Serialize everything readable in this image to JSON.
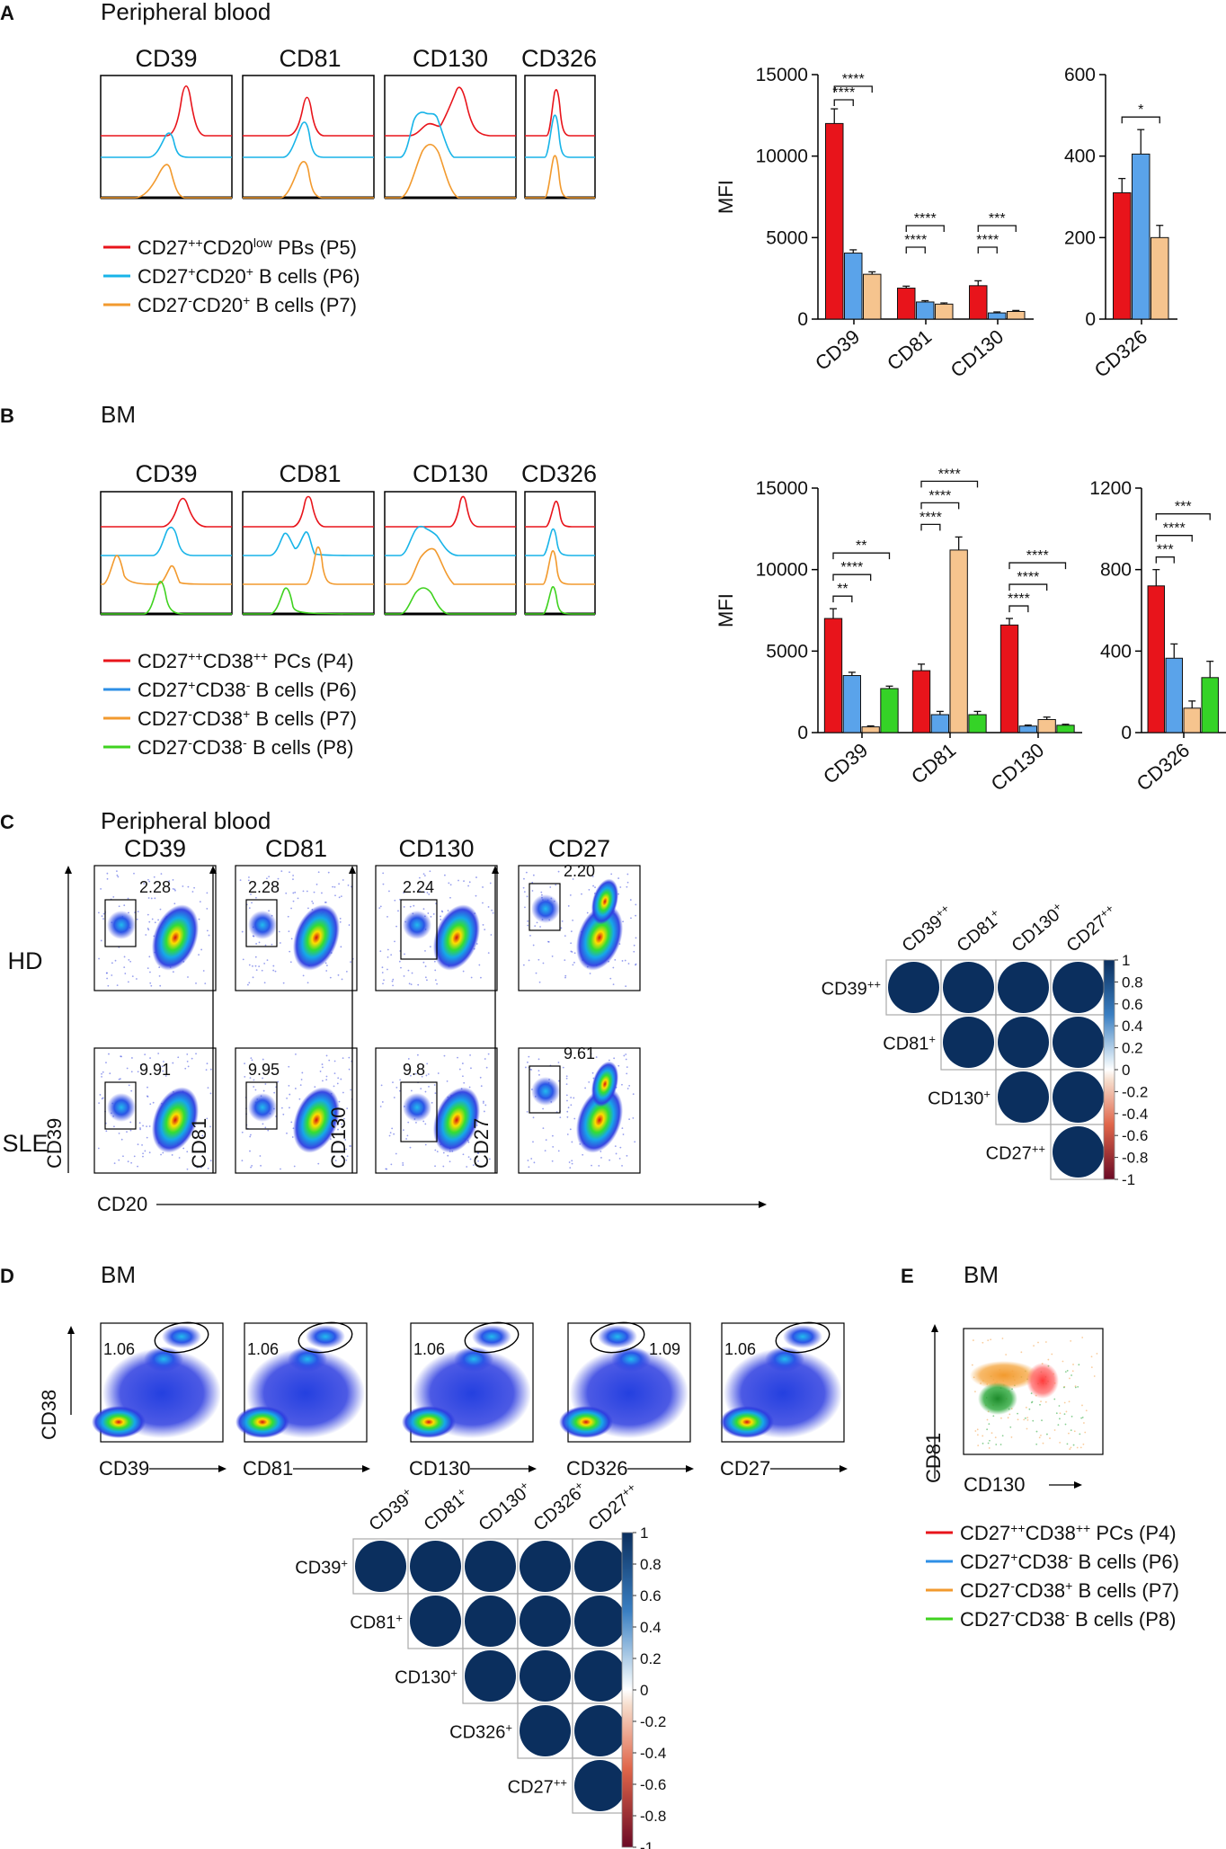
{
  "colors": {
    "red": "#e8141b",
    "blue": "#5aa3ea",
    "orange": "#f6c48e",
    "green": "#35d327",
    "blueLine": "#18b4e8",
    "blueLineB": "#2e8fe6",
    "orangeLine": "#f29a2e",
    "greenLine": "#3fd21f",
    "navy": "#0b2f5e",
    "gray": "#aaaaaa"
  },
  "panels": {
    "A": {
      "letter": "A",
      "title": "Peripheral blood"
    },
    "B": {
      "letter": "B",
      "title": "BM"
    },
    "C": {
      "letter": "C",
      "title": "Peripheral blood"
    },
    "D": {
      "letter": "D",
      "title": "BM"
    },
    "E": {
      "letter": "E",
      "title": "BM"
    }
  },
  "histA": {
    "markers": [
      "CD39",
      "CD81",
      "CD130",
      "CD326"
    ]
  },
  "histB": {
    "markers": [
      "CD39",
      "CD81",
      "CD130",
      "CD326"
    ]
  },
  "legendA": [
    {
      "html": "CD27<sup>++</sup>CD20<sup>low</sup> PBs (P5)",
      "color": "#e8141b"
    },
    {
      "html": "CD27<sup>+</sup>CD20<sup>+</sup> B cells (P6)",
      "color": "#18b4e8"
    },
    {
      "html": "CD27<sup>-</sup>CD20<sup>+</sup> B cells (P7)",
      "color": "#f29a2e"
    }
  ],
  "legendB": [
    {
      "html": "CD27<sup>++</sup>CD38<sup>++</sup> PCs (P4)",
      "color": "#e8141b"
    },
    {
      "html": "CD27<sup>+</sup>CD38<sup>-</sup> B cells (P6)",
      "color": "#2e8fe6"
    },
    {
      "html": "CD27<sup>-</sup>CD38<sup>+</sup> B cells (P7)",
      "color": "#f29a2e"
    },
    {
      "html": "CD27<sup>-</sup>CD38<sup>-</sup> B cells (P8)",
      "color": "#3fd21f"
    }
  ],
  "legendE": [
    {
      "html": "CD27<sup>++</sup>CD38<sup>++</sup> PCs (P4)",
      "color": "#e8141b"
    },
    {
      "html": "CD27<sup>+</sup>CD38<sup>-</sup> B cells (P6)",
      "color": "#2e8fe6"
    },
    {
      "html": "CD27<sup>-</sup>CD38<sup>+</sup> B cells (P7)",
      "color": "#f29a2e"
    },
    {
      "html": "CD27<sup>-</sup>CD38<sup>-</sup> B cells (P8)",
      "color": "#3fd21f"
    }
  ],
  "chart_data": [
    {
      "id": "A1",
      "type": "bar",
      "ylabel": "MFI",
      "ylim": [
        0,
        15000
      ],
      "yticks": [
        0,
        5000,
        10000,
        15000
      ],
      "categories": [
        "CD39",
        "CD81",
        "CD130"
      ],
      "series": [
        {
          "name": "P5",
          "values": [
            12000,
            1900,
            2050
          ],
          "errors": [
            900,
            120,
            300
          ]
        },
        {
          "name": "P6",
          "values": [
            4050,
            1050,
            380
          ],
          "errors": [
            200,
            80,
            60
          ]
        },
        {
          "name": "P7",
          "values": [
            2750,
            920,
            470
          ],
          "errors": [
            150,
            70,
            60
          ]
        }
      ],
      "significance": [
        {
          "cat": 0,
          "from": 0,
          "to": 1,
          "label": "****"
        },
        {
          "cat": 0,
          "from": 0,
          "to": 2,
          "label": "****"
        },
        {
          "cat": 1,
          "from": 0,
          "to": 1,
          "label": "****"
        },
        {
          "cat": 1,
          "from": 0,
          "to": 2,
          "label": "****"
        },
        {
          "cat": 2,
          "from": 0,
          "to": 1,
          "label": "****"
        },
        {
          "cat": 2,
          "from": 0,
          "to": 2,
          "label": "***"
        }
      ]
    },
    {
      "id": "A2",
      "type": "bar",
      "ylabel": "",
      "ylim": [
        0,
        600
      ],
      "yticks": [
        0,
        200,
        400,
        600
      ],
      "categories": [
        "CD326"
      ],
      "series": [
        {
          "name": "P5",
          "values": [
            310
          ],
          "errors": [
            35
          ]
        },
        {
          "name": "P6",
          "values": [
            405
          ],
          "errors": [
            60
          ]
        },
        {
          "name": "P7",
          "values": [
            200
          ],
          "errors": [
            30
          ]
        }
      ],
      "significance": [
        {
          "cat": 0,
          "from": 0,
          "to": 2,
          "label": "*"
        }
      ]
    },
    {
      "id": "B1",
      "type": "bar",
      "ylabel": "MFI",
      "ylim": [
        0,
        15000
      ],
      "yticks": [
        0,
        5000,
        10000,
        15000
      ],
      "categories": [
        "CD39",
        "CD81",
        "CD130"
      ],
      "series": [
        {
          "name": "P4",
          "values": [
            7000,
            3800,
            6600
          ],
          "errors": [
            600,
            400,
            400
          ]
        },
        {
          "name": "P6",
          "values": [
            3500,
            1100,
            400
          ],
          "errors": [
            200,
            200,
            60
          ]
        },
        {
          "name": "P7",
          "values": [
            350,
            11200,
            800
          ],
          "errors": [
            60,
            800,
            150
          ]
        },
        {
          "name": "P8",
          "values": [
            2700,
            1100,
            450
          ],
          "errors": [
            150,
            200,
            60
          ]
        }
      ],
      "significance": [
        {
          "cat": 0,
          "from": 0,
          "to": 1,
          "label": "**"
        },
        {
          "cat": 0,
          "from": 0,
          "to": 2,
          "label": "****"
        },
        {
          "cat": 0,
          "from": 0,
          "to": 3,
          "label": "**"
        },
        {
          "cat": 1,
          "from": 0,
          "to": 1,
          "label": "****"
        },
        {
          "cat": 1,
          "from": 0,
          "to": 2,
          "label": "****"
        },
        {
          "cat": 1,
          "from": 0,
          "to": 3,
          "label": "****"
        },
        {
          "cat": 2,
          "from": 0,
          "to": 1,
          "label": "****"
        },
        {
          "cat": 2,
          "from": 0,
          "to": 2,
          "label": "****"
        },
        {
          "cat": 2,
          "from": 0,
          "to": 3,
          "label": "****"
        }
      ]
    },
    {
      "id": "B2",
      "type": "bar",
      "ylabel": "",
      "ylim": [
        0,
        1200
      ],
      "yticks": [
        0,
        400,
        800,
        1200
      ],
      "categories": [
        "CD326"
      ],
      "series": [
        {
          "name": "P4",
          "values": [
            720
          ],
          "errors": [
            80
          ]
        },
        {
          "name": "P6",
          "values": [
            365
          ],
          "errors": [
            70
          ]
        },
        {
          "name": "P7",
          "values": [
            120
          ],
          "errors": [
            35
          ]
        },
        {
          "name": "P8",
          "values": [
            270
          ],
          "errors": [
            80
          ]
        }
      ],
      "significance": [
        {
          "cat": 0,
          "from": 0,
          "to": 1,
          "label": "***"
        },
        {
          "cat": 0,
          "from": 0,
          "to": 2,
          "label": "****"
        },
        {
          "cat": 0,
          "from": 0,
          "to": 3,
          "label": "***"
        }
      ]
    },
    {
      "id": "C-corr",
      "type": "heatmap",
      "labels": [
        "CD39<tspan baseline-shift=\"super\" font-size=\"13\">++</tspan>",
        "CD81<tspan baseline-shift=\"super\" font-size=\"13\">+</tspan>",
        "CD130<tspan baseline-shift=\"super\" font-size=\"13\">+</tspan>",
        "CD27<tspan baseline-shift=\"super\" font-size=\"13\">++</tspan>"
      ],
      "values": [
        [
          1,
          1,
          1,
          1
        ],
        [
          null,
          1,
          1,
          1
        ],
        [
          null,
          null,
          1,
          1
        ],
        [
          null,
          null,
          null,
          1
        ]
      ],
      "scale": [
        "1",
        "0.8",
        "0.6",
        "0.4",
        "0.2",
        "0",
        "-0.2",
        "-0.4",
        "-0.6",
        "-0.8",
        "-1"
      ]
    },
    {
      "id": "D-corr",
      "type": "heatmap",
      "labels": [
        "CD39<tspan baseline-shift=\"super\" font-size=\"13\">+</tspan>",
        "CD81<tspan baseline-shift=\"super\" font-size=\"13\">+</tspan>",
        "CD130<tspan baseline-shift=\"super\" font-size=\"13\">+</tspan>",
        "CD326<tspan baseline-shift=\"super\" font-size=\"13\">+</tspan>",
        "CD27<tspan baseline-shift=\"super\" font-size=\"13\">++</tspan>"
      ],
      "values": [
        [
          1,
          1,
          1,
          1,
          1
        ],
        [
          null,
          1,
          1,
          1,
          1
        ],
        [
          null,
          null,
          1,
          1,
          1
        ],
        [
          null,
          null,
          null,
          1,
          1
        ],
        [
          null,
          null,
          null,
          null,
          1
        ]
      ],
      "scale": [
        "1",
        "0.8",
        "0.6",
        "0.4",
        "0.2",
        "0",
        "-0.2",
        "-0.4",
        "-0.6",
        "-0.8",
        "-1"
      ]
    },
    {
      "id": "C-flow",
      "type": "scatter",
      "markers": [
        "CD39",
        "CD81",
        "CD130",
        "CD27"
      ],
      "rows": [
        "HD",
        "SLE"
      ],
      "gates": [
        [
          "2.28",
          "2.28",
          "2.24",
          "2.20"
        ],
        [
          "9.91",
          "9.95",
          "9.8",
          "9.61"
        ]
      ],
      "ylabels": [
        "CD39",
        "CD81",
        "CD130",
        "CD27"
      ],
      "xlabel": "CD20"
    },
    {
      "id": "D-flow",
      "type": "scatter",
      "xlabels": [
        "CD39",
        "CD81",
        "CD130",
        "CD326",
        "CD27"
      ],
      "gates": [
        "1.06",
        "1.06",
        "1.06",
        "1.09",
        "1.06"
      ],
      "ylabel": "CD38"
    },
    {
      "id": "E-flow",
      "type": "scatter",
      "xlabel": "CD130",
      "ylabel": "CD81"
    }
  ]
}
